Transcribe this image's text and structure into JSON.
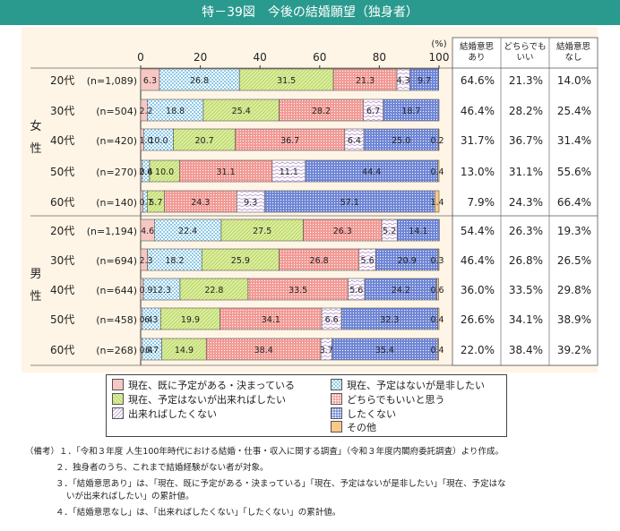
{
  "title": "特－39図　今後の結婚願望（独身者）",
  "colors": {
    "header": "#2a9a8f",
    "panel": "#fff5e6",
    "divider": "#777777"
  },
  "table_headers": [
    "結婚意思あり",
    "どちらでもいい",
    "結婚意思なし"
  ],
  "chart_data": {
    "type": "bar",
    "orientation": "horizontal",
    "stacked": true,
    "unit": "(%)",
    "xlim": [
      0,
      100
    ],
    "xticks": [
      0,
      20,
      40,
      60,
      80,
      100
    ],
    "grid": false,
    "legend_position": "bottom",
    "groups": [
      {
        "name": "女性",
        "label_chars": [
          "女",
          "性"
        ]
      },
      {
        "name": "男性",
        "label_chars": [
          "男",
          "性"
        ]
      }
    ],
    "categories": [
      {
        "group": 0,
        "age": "20代",
        "n": "(n=1,089)"
      },
      {
        "group": 0,
        "age": "30代",
        "n": "(n=504)"
      },
      {
        "group": 0,
        "age": "40代",
        "n": "(n=420)"
      },
      {
        "group": 0,
        "age": "50代",
        "n": "(n=270)"
      },
      {
        "group": 0,
        "age": "60代",
        "n": "(n=140)"
      },
      {
        "group": 1,
        "age": "20代",
        "n": "(n=1,194)"
      },
      {
        "group": 1,
        "age": "30代",
        "n": "(n=694)"
      },
      {
        "group": 1,
        "age": "40代",
        "n": "(n=644)"
      },
      {
        "group": 1,
        "age": "50代",
        "n": "(n=458)"
      },
      {
        "group": 1,
        "age": "60代",
        "n": "(n=268)"
      }
    ],
    "series": [
      {
        "name": "現在、既に予定がある・決まっている",
        "color": "#f7c7c4",
        "pattern": "solid",
        "values": [
          6.3,
          2.2,
          1.0,
          0.4,
          0.7,
          4.6,
          2.3,
          0.9,
          0.4,
          0.4
        ],
        "labels": [
          "6.3",
          "2.2",
          "1.0",
          "0.4",
          "0.7",
          "4.6",
          "2.3",
          "0.9",
          "0.4",
          "0.4"
        ]
      },
      {
        "name": "現在、予定はないが是非したい",
        "color": "#a9d9ef",
        "pattern": "checker",
        "values": [
          26.8,
          18.8,
          10.0,
          2.6,
          1.5,
          22.4,
          18.2,
          12.3,
          6.3,
          6.7
        ],
        "labels": [
          "26.8",
          "18.8",
          "10.0",
          "2.6",
          "",
          "22.4",
          "18.2",
          "12.3",
          "6.3",
          "6.7"
        ]
      },
      {
        "name": "現在、予定はないが出来ればしたい",
        "color": "#ddef9f",
        "pattern": "diagonal",
        "values": [
          31.5,
          25.4,
          20.7,
          10.0,
          5.7,
          27.5,
          25.9,
          22.8,
          19.9,
          14.9
        ],
        "labels": [
          "31.5",
          "25.4",
          "20.7",
          "10.0",
          "5.7",
          "27.5",
          "25.9",
          "22.8",
          "19.9",
          "14.9"
        ]
      },
      {
        "name": "どちらでもいいと思う",
        "color": "#f29a95",
        "pattern": "dots",
        "values": [
          21.3,
          28.2,
          36.7,
          31.1,
          24.3,
          26.3,
          26.8,
          33.5,
          34.1,
          38.4
        ],
        "labels": [
          "21.3",
          "28.2",
          "36.7",
          "31.1",
          "24.3",
          "26.3",
          "26.8",
          "33.5",
          "34.1",
          "38.4"
        ]
      },
      {
        "name": "出来ればしたくない",
        "color": "#e7d7f0",
        "pattern": "wave",
        "values": [
          4.3,
          6.7,
          6.4,
          11.1,
          9.3,
          5.2,
          5.6,
          5.6,
          6.6,
          3.7
        ],
        "labels": [
          "4.3",
          "6.7",
          "6.4",
          "11.1",
          "9.3",
          "5.2",
          "5.6",
          "5.6",
          "6.6",
          "3.7"
        ]
      },
      {
        "name": "したくない",
        "color": "#6f86d6",
        "pattern": "dense-dots",
        "values": [
          9.7,
          18.7,
          25.0,
          44.4,
          57.1,
          14.1,
          20.9,
          24.2,
          32.3,
          35.4
        ],
        "labels": [
          "9.7",
          "18.7",
          "25.0",
          "44.4",
          "57.1",
          "14.1",
          "20.9",
          "24.2",
          "32.3",
          "35.4"
        ]
      },
      {
        "name": "その他",
        "color": "#f9c98a",
        "pattern": "solid",
        "values": [
          0.0,
          0.0,
          0.2,
          0.4,
          1.4,
          0.0,
          0.3,
          0.6,
          0.4,
          0.4
        ],
        "labels": [
          "",
          "",
          "0.2",
          "0.4",
          "1.4",
          "",
          "0.3",
          "0.6",
          "0.4",
          "0.4"
        ]
      }
    ],
    "table": [
      [
        "64.6%",
        "21.3%",
        "14.0%"
      ],
      [
        "46.4%",
        "28.2%",
        "25.4%"
      ],
      [
        "31.7%",
        "36.7%",
        "31.4%"
      ],
      [
        "13.0%",
        "31.1%",
        "55.6%"
      ],
      [
        "7.9%",
        "24.3%",
        "66.4%"
      ],
      [
        "54.4%",
        "26.3%",
        "19.3%"
      ],
      [
        "46.4%",
        "26.8%",
        "26.5%"
      ],
      [
        "36.0%",
        "33.5%",
        "29.8%"
      ],
      [
        "26.6%",
        "34.1%",
        "38.9%"
      ],
      [
        "22.0%",
        "38.4%",
        "39.2%"
      ]
    ]
  },
  "legend": [
    "現在、既に予定がある・決まっている",
    "現在、予定はないが是非したい",
    "現在、予定はないが出来ればしたい",
    "どちらでもいいと思う",
    "出来ればしたくない",
    "したくない",
    "その他"
  ],
  "notes": [
    "（備考）１．「令和３年度 人生100年時代における結婚・仕事・収入に関する調査」（令和３年度内閣府委託調査）より作成。",
    "２．独身者のうち、これまで結婚経験がない者が対象。",
    "３．「結婚意思あり」は、「現在、既に予定がある・決まっている」「現在、予定はないが是非したい」「現在、予定はな",
    "いが出来ればしたい」の累計値。",
    "４．「結婚意思なし」は、「出来ればしたくない」「したくない」の累計値。"
  ]
}
